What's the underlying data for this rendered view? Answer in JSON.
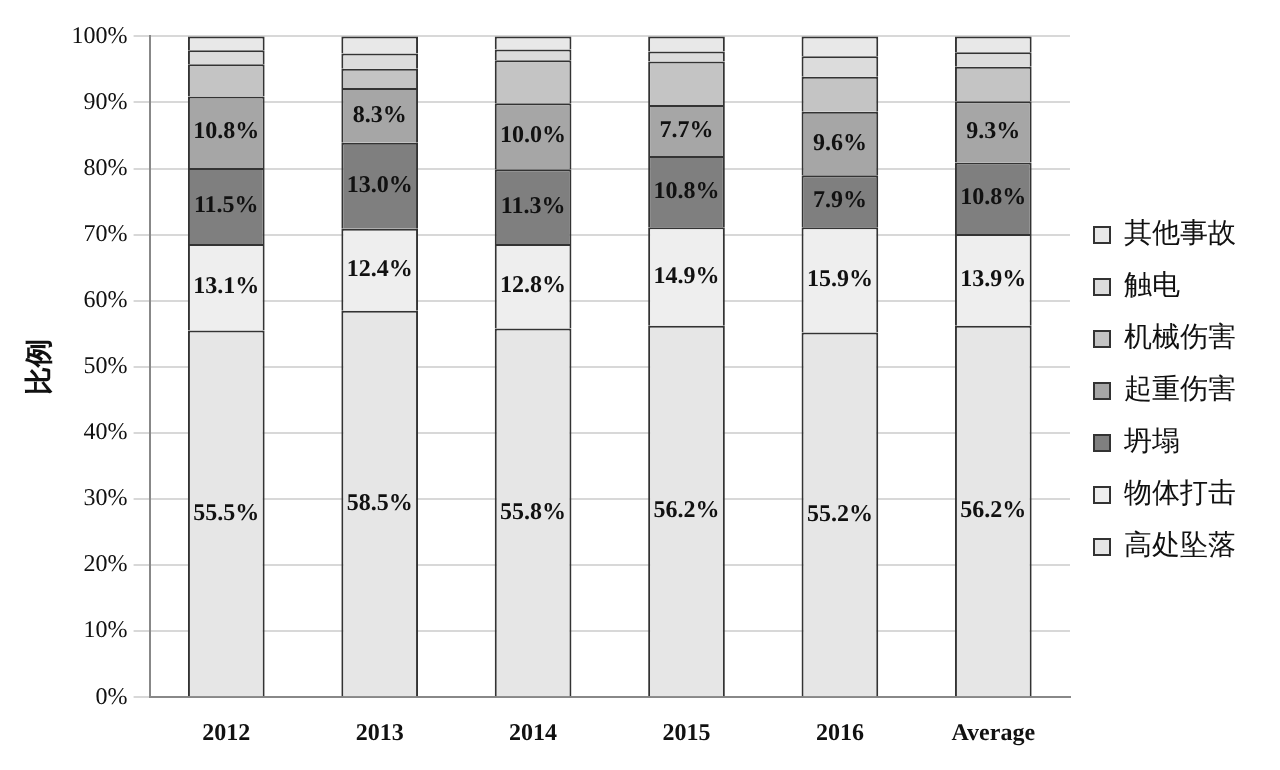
{
  "chart_data": {
    "type": "bar",
    "stacked": true,
    "ylabel": "比例",
    "categories": [
      "2012",
      "2013",
      "2014",
      "2015",
      "2016",
      "Average"
    ],
    "series": [
      {
        "name": "高处坠落",
        "color": "#e6e6e6",
        "values": [
          55.5,
          58.5,
          55.8,
          56.2,
          55.2,
          56.2
        ],
        "value_labels": [
          "55.5%",
          "58.5%",
          "55.8%",
          "56.2%",
          "55.2%",
          "56.2%"
        ]
      },
      {
        "name": "物体打击",
        "color": "#eeeeee",
        "values": [
          13.1,
          12.4,
          12.8,
          14.9,
          15.9,
          13.9
        ],
        "value_labels": [
          "13.1%",
          "12.4%",
          "12.8%",
          "14.9%",
          "15.9%",
          "13.9%"
        ]
      },
      {
        "name": "坍塌",
        "color": "#7f7f7f",
        "values": [
          11.5,
          13.0,
          11.3,
          10.8,
          7.9,
          10.8
        ],
        "value_labels": [
          "11.5%",
          "13.0%",
          "11.3%",
          "10.8%",
          "7.9%",
          "10.8%"
        ]
      },
      {
        "name": "起重伤害",
        "color": "#a6a6a6",
        "values": [
          10.8,
          8.3,
          10.0,
          7.7,
          9.6,
          9.3
        ],
        "value_labels": [
          "10.8%",
          "8.3%",
          "10.0%",
          "7.7%",
          "9.6%",
          "9.3%"
        ]
      },
      {
        "name": "机械伤害",
        "color": "#c4c4c4",
        "values": [
          4.9,
          2.9,
          6.5,
          6.6,
          5.3,
          5.2
        ]
      },
      {
        "name": "触电",
        "color": "#dcdcdc",
        "values": [
          2.1,
          2.3,
          1.6,
          1.5,
          3.1,
          2.2
        ]
      },
      {
        "name": "其他事故",
        "color": "#e8e8e8",
        "values": [
          2.1,
          2.6,
          2.0,
          2.3,
          3.0,
          2.4
        ]
      }
    ],
    "ylim": [
      0,
      100
    ],
    "yticks": [
      {
        "value": 0,
        "label": "0%"
      },
      {
        "value": 10,
        "label": "10%"
      },
      {
        "value": 20,
        "label": "20%"
      },
      {
        "value": 30,
        "label": "30%"
      },
      {
        "value": 40,
        "label": "40%"
      },
      {
        "value": 50,
        "label": "50%"
      },
      {
        "value": 60,
        "label": "60%"
      },
      {
        "value": 70,
        "label": "70%"
      },
      {
        "value": 80,
        "label": "80%"
      },
      {
        "value": 90,
        "label": "90%"
      },
      {
        "value": 100,
        "label": "100%"
      }
    ],
    "grid": "y",
    "legend": "right"
  }
}
